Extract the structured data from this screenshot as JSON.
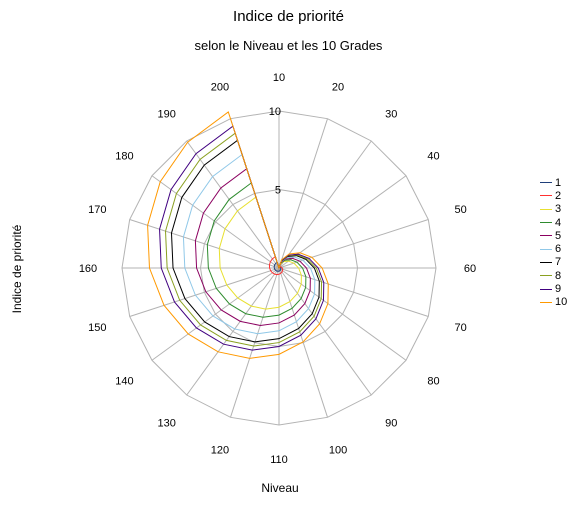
{
  "chart_data": {
    "type": "radar",
    "title": "Indice de priorité",
    "subtitle": "selon le Niveau et les 10 Grades",
    "xlabel": "Niveau",
    "ylabel": "Indice de priorité",
    "categories": [
      "10",
      "20",
      "30",
      "40",
      "50",
      "60",
      "70",
      "80",
      "90",
      "100",
      "110",
      "120",
      "130",
      "140",
      "150",
      "160",
      "170",
      "180",
      "190",
      "200"
    ],
    "r_ticks": [
      "5",
      "10"
    ],
    "rlim": [
      0,
      10
    ],
    "grid": true,
    "legend_position": "right",
    "series": [
      {
        "name": "1",
        "color": "#1f3f7a",
        "values": [
          0,
          0.02,
          0.04,
          0.06,
          0.08,
          0.1,
          0.12,
          0.14,
          0.16,
          0.18,
          0.2,
          0.22,
          0.24,
          0.26,
          0.28,
          0.3,
          0.32,
          0.34,
          0.36,
          0.38
        ]
      },
      {
        "name": "2",
        "color": "#ff3030",
        "values": [
          0,
          0.04,
          0.08,
          0.12,
          0.16,
          0.2,
          0.24,
          0.28,
          0.32,
          0.36,
          0.4,
          0.44,
          0.48,
          0.52,
          0.56,
          0.6,
          0.64,
          0.68,
          0.72,
          0.76
        ]
      },
      {
        "name": "3",
        "color": "#e8e030",
        "values": [
          0,
          0.25,
          0.5,
          0.75,
          1.0,
          1.25,
          1.5,
          1.75,
          2.0,
          2.25,
          2.5,
          2.75,
          3.0,
          3.25,
          3.5,
          3.75,
          4.0,
          4.25,
          4.5,
          4.75
        ]
      },
      {
        "name": "4",
        "color": "#2e8b2e",
        "values": [
          0,
          0.3,
          0.6,
          0.9,
          1.2,
          1.5,
          1.8,
          2.1,
          2.4,
          2.7,
          3.0,
          3.3,
          3.6,
          3.9,
          4.2,
          4.5,
          4.8,
          5.1,
          5.4,
          5.7
        ]
      },
      {
        "name": "5",
        "color": "#8b0060",
        "values": [
          0,
          0.35,
          0.7,
          1.05,
          1.4,
          1.75,
          2.1,
          2.45,
          2.8,
          3.15,
          3.5,
          3.85,
          4.2,
          4.55,
          4.9,
          5.25,
          5.6,
          5.95,
          6.3,
          6.65
        ]
      },
      {
        "name": "6",
        "color": "#90c8e8",
        "values": [
          0,
          0.4,
          0.8,
          1.2,
          1.6,
          2.0,
          2.4,
          2.8,
          3.2,
          3.6,
          4.0,
          4.4,
          4.8,
          5.2,
          5.6,
          6.0,
          6.4,
          6.8,
          7.2,
          7.6
        ]
      },
      {
        "name": "7",
        "color": "#000000",
        "values": [
          0,
          0.45,
          0.9,
          1.35,
          1.8,
          2.25,
          2.7,
          3.15,
          3.6,
          4.05,
          4.5,
          4.95,
          5.4,
          5.85,
          6.3,
          6.75,
          7.2,
          7.65,
          8.1,
          8.55
        ]
      },
      {
        "name": "8",
        "color": "#8aa020",
        "values": [
          0,
          0.475,
          0.95,
          1.425,
          1.9,
          2.375,
          2.85,
          3.325,
          3.8,
          4.275,
          4.75,
          5.225,
          5.7,
          6.175,
          6.65,
          7.125,
          7.6,
          8.075,
          8.55,
          9.025
        ]
      },
      {
        "name": "9",
        "color": "#400080",
        "values": [
          0,
          0.5,
          1.0,
          1.5,
          2.0,
          2.5,
          3.0,
          3.5,
          4.0,
          4.5,
          5.0,
          5.5,
          6.0,
          6.5,
          7.0,
          7.5,
          8.0,
          8.5,
          9.0,
          9.5
        ]
      },
      {
        "name": "10",
        "color": "#ff9900",
        "values": [
          0,
          0.55,
          1.1,
          1.65,
          2.2,
          2.75,
          3.3,
          3.85,
          4.4,
          4.95,
          5.5,
          6.05,
          6.6,
          7.15,
          7.7,
          8.25,
          8.8,
          9.35,
          9.9,
          10.45
        ]
      }
    ]
  }
}
